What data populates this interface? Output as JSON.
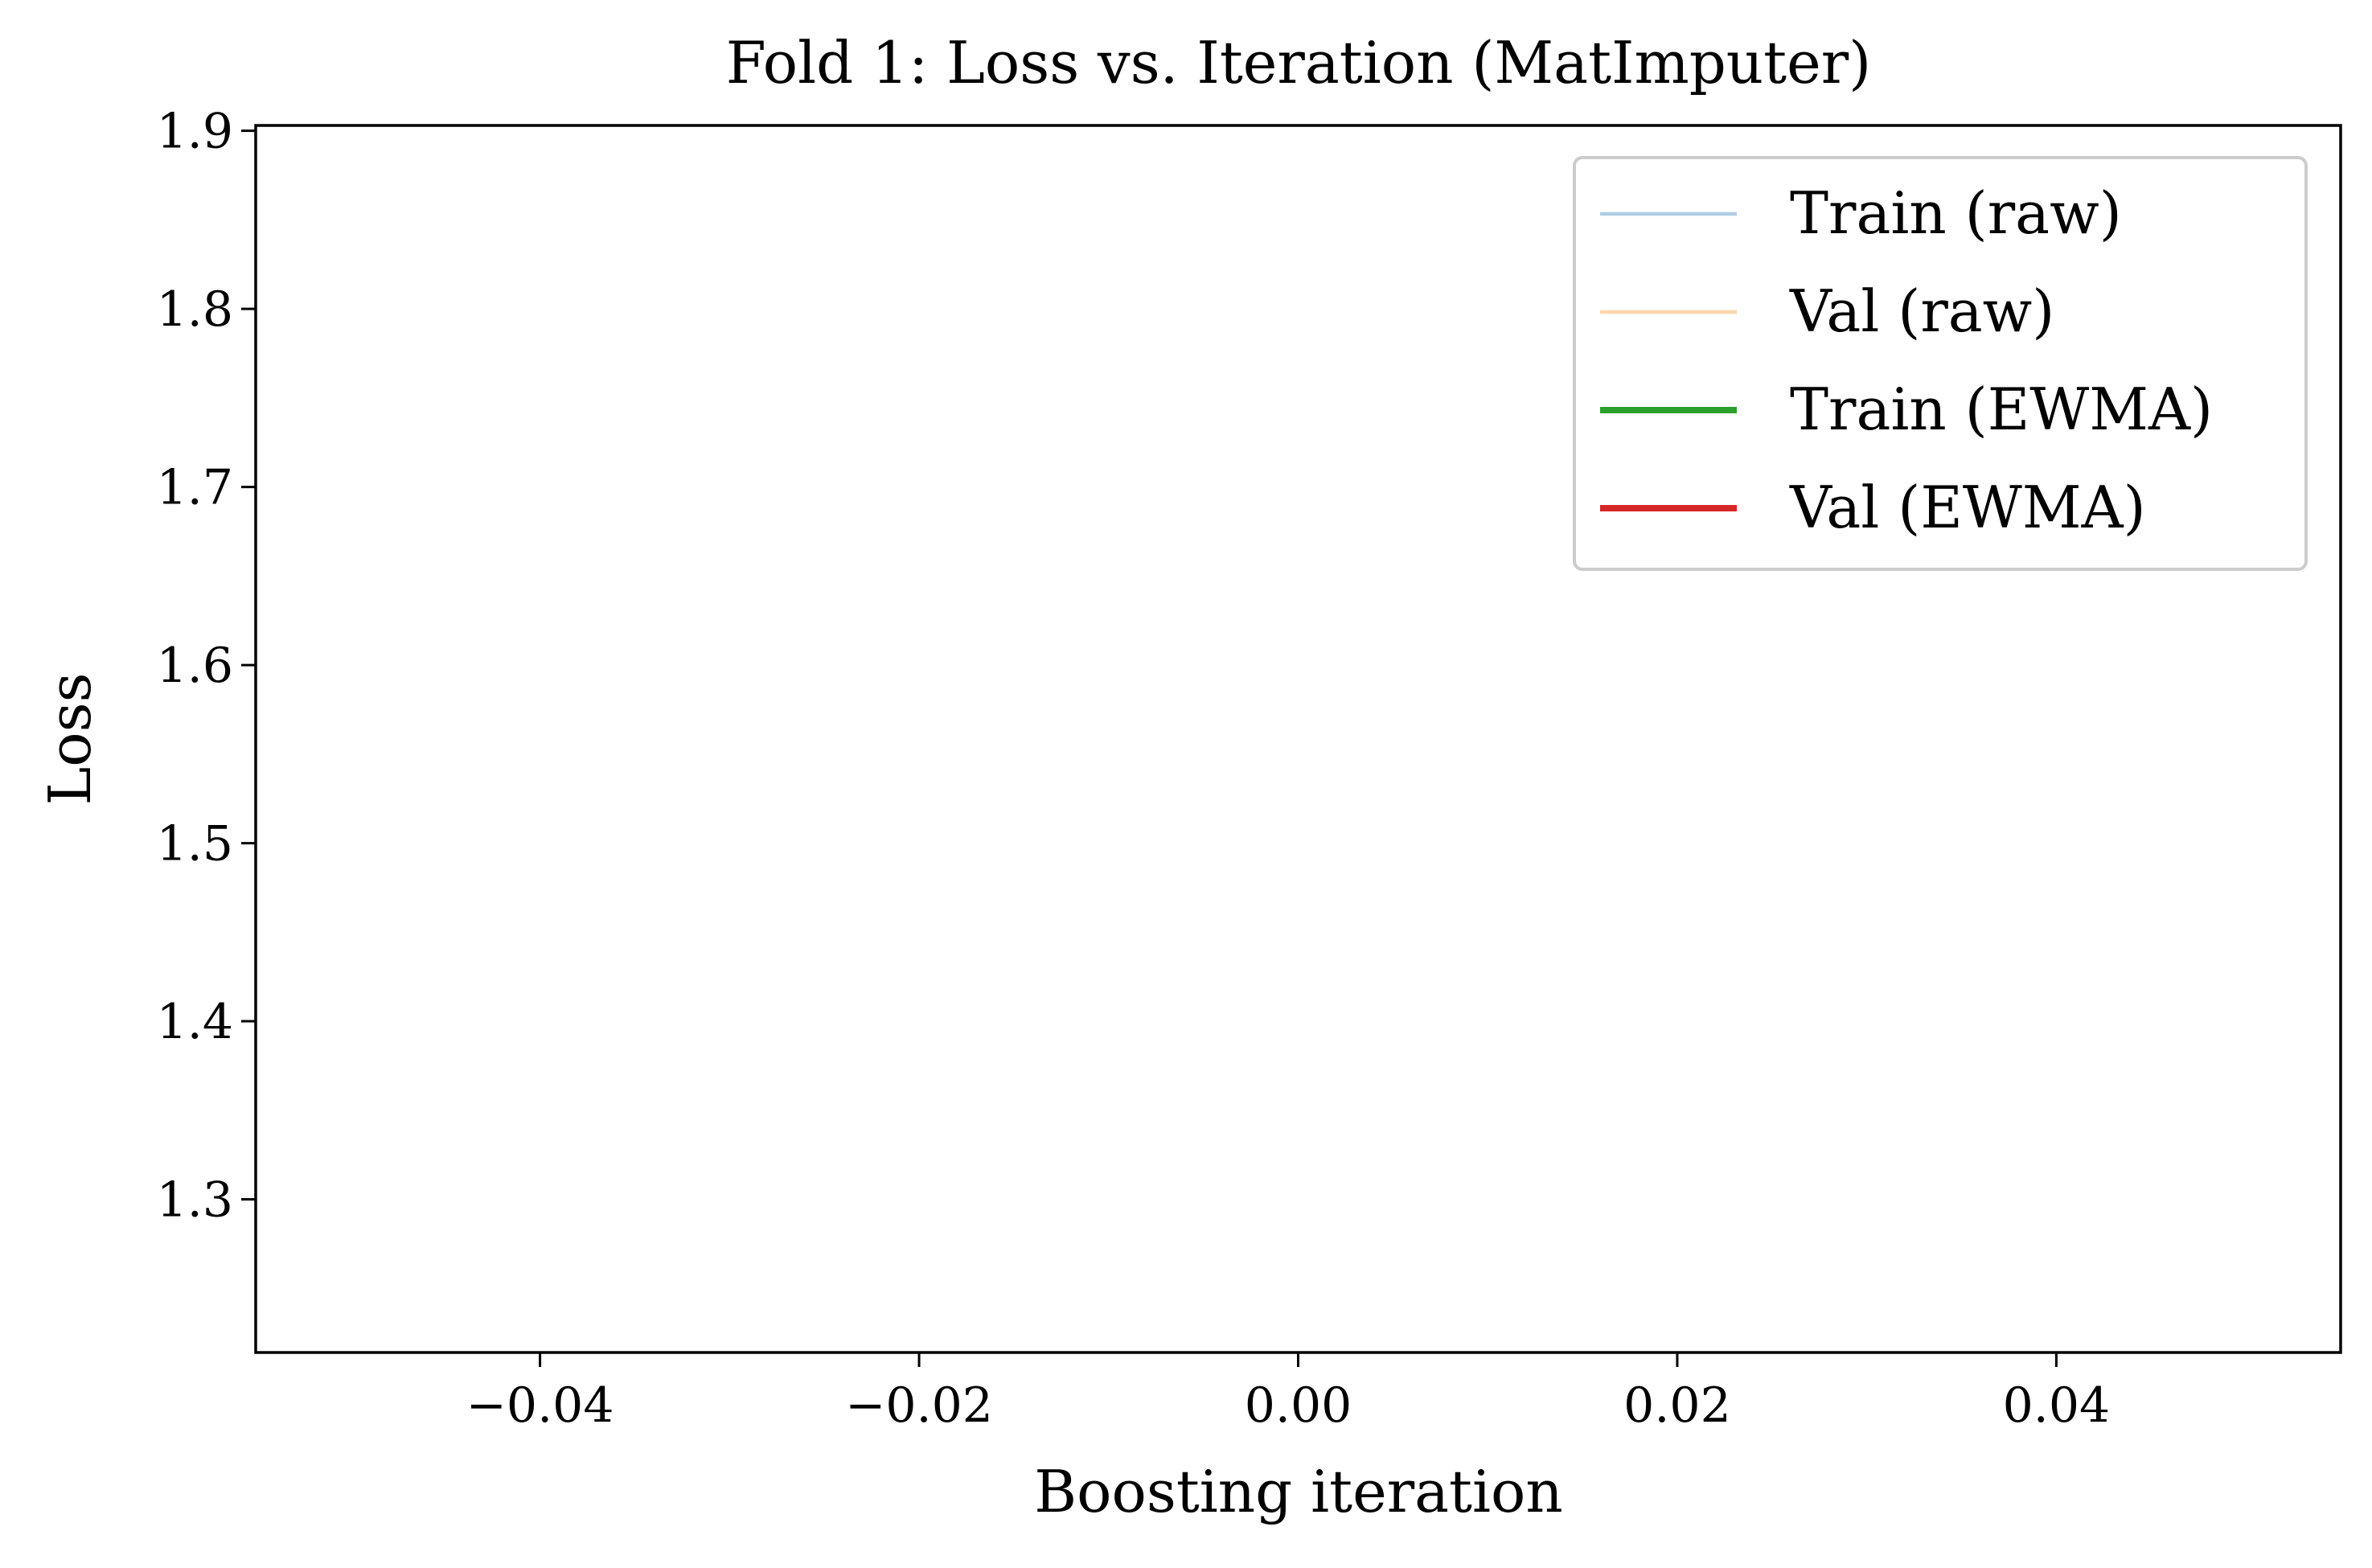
{
  "chart_data": {
    "type": "line",
    "title": "Fold 1: Loss vs. Iteration (MatImputer)",
    "xlabel": "Boosting iteration",
    "ylabel": "Loss",
    "xlim": [
      -0.055,
      0.055
    ],
    "ylim": [
      1.214,
      1.903
    ],
    "xticks": [
      -0.04,
      -0.02,
      0.0,
      0.02,
      0.04
    ],
    "xtick_labels": [
      "−0.04",
      "−0.02",
      "0.00",
      "0.02",
      "0.04"
    ],
    "yticks": [
      1.3,
      1.4,
      1.5,
      1.6,
      1.7,
      1.8,
      1.9
    ],
    "ytick_labels": [
      "1.3",
      "1.4",
      "1.5",
      "1.6",
      "1.7",
      "1.8",
      "1.9"
    ],
    "grid": false,
    "legend_position": "top-right",
    "series": [
      {
        "name": "Train (raw)",
        "color": "#aecde6",
        "style": "thin",
        "x": [],
        "y": []
      },
      {
        "name": "Val (raw)",
        "color": "#fdd5ad",
        "style": "thin",
        "x": [],
        "y": []
      },
      {
        "name": "Train (EWMA)",
        "color": "#2ca02c",
        "style": "thick",
        "x": [],
        "y": []
      },
      {
        "name": "Val (EWMA)",
        "color": "#d62728",
        "style": "thick",
        "x": [],
        "y": []
      }
    ]
  }
}
